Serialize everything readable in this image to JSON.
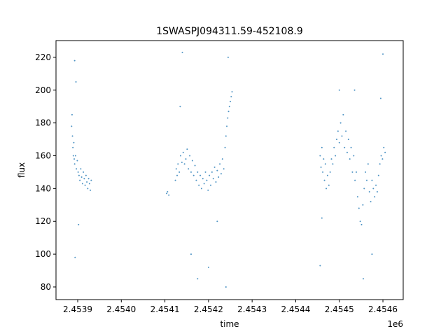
{
  "chart_data": {
    "type": "scatter",
    "title": "1SWASPJ094311.59-452108.9",
    "x_label": "time",
    "y_label": "flux",
    "x_offset_label": "1e6",
    "color": "#1f77b4",
    "x": [
      2453886,
      2453887,
      2453888,
      2453889,
      2453890,
      2453891,
      2453892,
      2453893,
      2453895,
      2453897,
      2453899,
      2453901,
      2453903,
      2453905,
      2453907,
      2453909,
      2453911,
      2453913,
      2453915,
      2453917,
      2453919,
      2453921,
      2453923,
      2453925,
      2453927,
      2453929,
      2453931,
      2453894,
      2453896,
      2453902,
      2453893,
      2454104,
      2454106,
      2454109,
      2454124,
      2454126,
      2454128,
      2454130,
      2454133,
      2454136,
      2454139,
      2454142,
      2454145,
      2454148,
      2454151,
      2454154,
      2454157,
      2454160,
      2454163,
      2454166,
      2454169,
      2454172,
      2454175,
      2454178,
      2454181,
      2454184,
      2454187,
      2454190,
      2454193,
      2454196,
      2454199,
      2454202,
      2454205,
      2454208,
      2454211,
      2454214,
      2454217,
      2454220,
      2454223,
      2454226,
      2454229,
      2454232,
      2454235,
      2454238,
      2454240,
      2454242,
      2454244,
      2454246,
      2454248,
      2454250,
      2454252,
      2454254,
      2454135,
      2454140,
      2454160,
      2454200,
      2454240,
      2454245,
      2454175,
      2454220,
      2454456,
      2454458,
      2454460,
      2454462,
      2454464,
      2454466,
      2454468,
      2454470,
      2454473,
      2454476,
      2454479,
      2454482,
      2454485,
      2454488,
      2454491,
      2454494,
      2454497,
      2454500,
      2454503,
      2454506,
      2454509,
      2454512,
      2454515,
      2454518,
      2454521,
      2454524,
      2454527,
      2454530,
      2454533,
      2454536,
      2454539,
      2454542,
      2454545,
      2454548,
      2454551,
      2454554,
      2454557,
      2454560,
      2454563,
      2454566,
      2454569,
      2454572,
      2454575,
      2454578,
      2454581,
      2454584,
      2454587,
      2454590,
      2454593,
      2454596,
      2454599,
      2454602,
      2454605,
      2454456,
      2454460,
      2454500,
      2454535,
      2454555,
      2454575,
      2454600,
      2454595
    ],
    "values": [
      178,
      185,
      172,
      165,
      160,
      168,
      158,
      155,
      160,
      152,
      157,
      150,
      148,
      145,
      152,
      147,
      143,
      150,
      146,
      142,
      148,
      144,
      140,
      146,
      143,
      139,
      145,
      98,
      205,
      118,
      218,
      137,
      138,
      136,
      145,
      152,
      148,
      155,
      150,
      160,
      156,
      162,
      155,
      158,
      164,
      152,
      160,
      150,
      157,
      148,
      154,
      145,
      150,
      142,
      148,
      140,
      146,
      143,
      150,
      145,
      139,
      148,
      142,
      150,
      146,
      153,
      144,
      151,
      147,
      155,
      149,
      158,
      152,
      165,
      172,
      178,
      183,
      187,
      190,
      193,
      196,
      199,
      190,
      223,
      100,
      92,
      80,
      220,
      85,
      120,
      160,
      153,
      165,
      150,
      158,
      145,
      155,
      140,
      148,
      142,
      150,
      158,
      155,
      165,
      160,
      170,
      175,
      168,
      180,
      172,
      185,
      165,
      175,
      162,
      170,
      158,
      165,
      150,
      160,
      145,
      150,
      135,
      128,
      120,
      118,
      130,
      140,
      150,
      145,
      155,
      138,
      132,
      145,
      140,
      135,
      142,
      138,
      148,
      155,
      160,
      158,
      165,
      162,
      93,
      122,
      200,
      200,
      85,
      100,
      222,
      195
    ],
    "xlim": [
      2453850.2,
      2454646.5
    ],
    "ylim": [
      72.3,
      230.2
    ],
    "xticks": [
      {
        "value": 2453900,
        "label": "2.4539"
      },
      {
        "value": 2454000,
        "label": "2.4540"
      },
      {
        "value": 2454100,
        "label": "2.4541"
      },
      {
        "value": 2454200,
        "label": "2.4542"
      },
      {
        "value": 2454300,
        "label": "2.4543"
      },
      {
        "value": 2454400,
        "label": "2.4544"
      },
      {
        "value": 2454500,
        "label": "2.4545"
      },
      {
        "value": 2454600,
        "label": "2.4546"
      }
    ],
    "yticks": [
      80,
      100,
      120,
      140,
      160,
      180,
      200,
      220
    ],
    "grid": false
  }
}
